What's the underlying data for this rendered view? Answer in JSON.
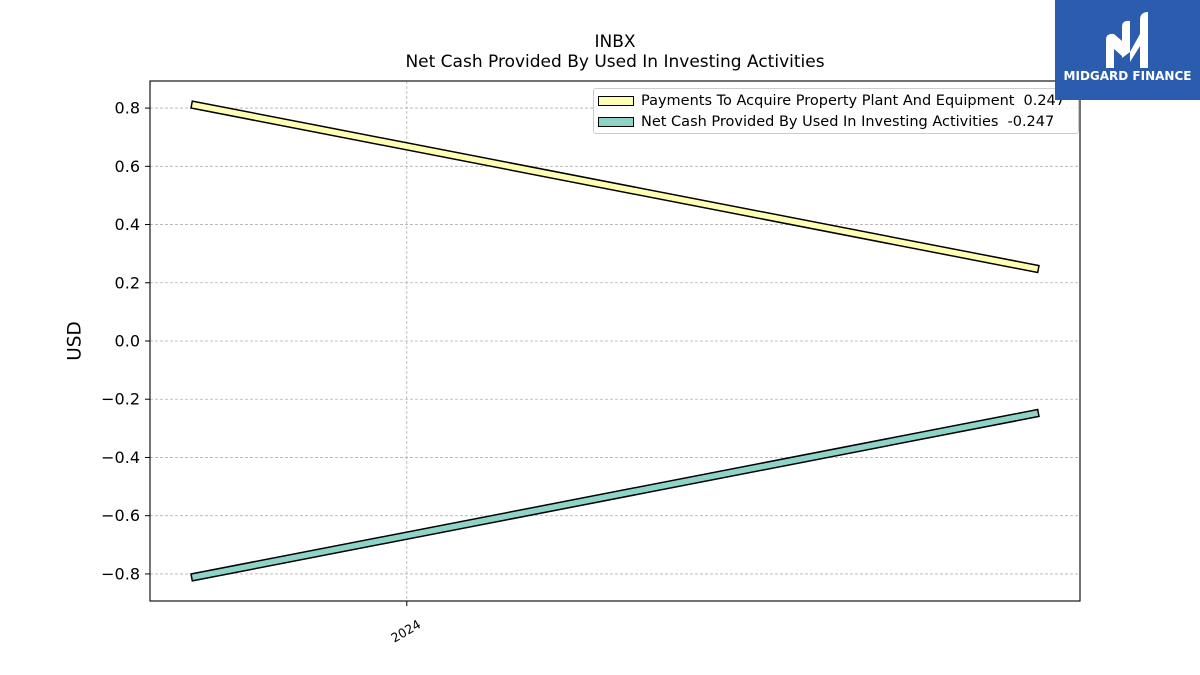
{
  "chart_data": {
    "type": "line",
    "title": "INBX",
    "subtitle": "Net Cash Provided By Used In Investing Activities",
    "ylabel": "USD",
    "x": [
      "2023-09-30",
      "2024-09-30"
    ],
    "xlim": [
      "2023-09-12",
      "2024-10-18"
    ],
    "ylim": [
      -0.893,
      0.893
    ],
    "xticks": [
      {
        "value": "2024-01-01",
        "label": "2024"
      }
    ],
    "yticks": [
      {
        "value": 0.8,
        "label": "0.8"
      },
      {
        "value": 0.6,
        "label": "0.6"
      },
      {
        "value": 0.4,
        "label": "0.4"
      },
      {
        "value": 0.2,
        "label": "0.2"
      },
      {
        "value": 0.0,
        "label": "0.0"
      },
      {
        "value": -0.2,
        "label": "−0.2"
      },
      {
        "value": -0.4,
        "label": "−0.4"
      },
      {
        "value": -0.6,
        "label": "−0.6"
      },
      {
        "value": -0.8,
        "label": "−0.8"
      }
    ],
    "grid": true,
    "legend_position": "top-right",
    "series": [
      {
        "name": "Payments To Acquire Property Plant And Equipment",
        "legend_value": "0.247",
        "values": [
          0.812,
          0.247
        ],
        "color": "#ffffb3"
      },
      {
        "name": "Net Cash Provided By Used In Investing Activities",
        "legend_value": "-0.247",
        "values": [
          -0.812,
          -0.247
        ],
        "color": "#8dd3c7"
      }
    ]
  },
  "logo": {
    "text": "MIDGARD FINANCE",
    "color": "#2b5cae"
  }
}
